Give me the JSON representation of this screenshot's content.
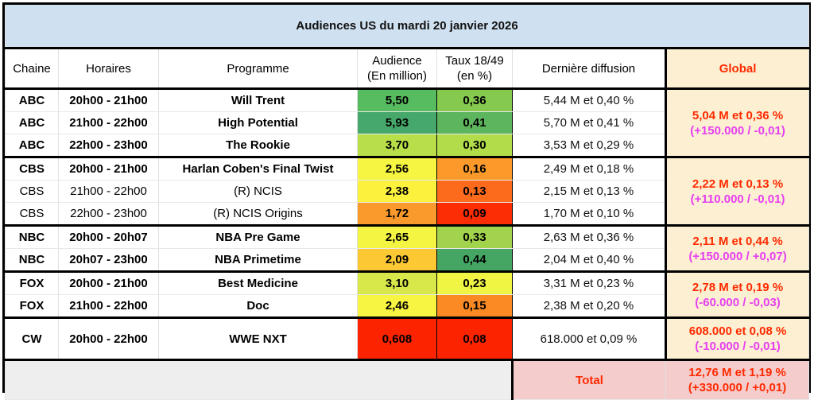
{
  "title": "Audiences US du mardi 20 janvier 2026",
  "headers": {
    "chaine": "Chaine",
    "horaires": "Horaires",
    "programme": "Programme",
    "audience_l1": "Audience",
    "audience_l2": "(En million)",
    "taux_l1": "Taux 18/49",
    "taux_l2": "(en %)",
    "derniere": "Dernière diffusion",
    "global": "Global"
  },
  "rows": [
    {
      "chaine": "ABC",
      "horaires": "20h00 - 21h00",
      "programme": "Will Trent",
      "audience": "5,50",
      "taux": "0,36",
      "derniere": "5,44 M et 0,40 %",
      "bold": true,
      "audience_color": "#57bb5f",
      "taux_color": "#85c94f"
    },
    {
      "chaine": "ABC",
      "horaires": "21h00 - 22h00",
      "programme": "High Potential",
      "audience": "5,93",
      "taux": "0,41",
      "derniere": "5,70 M et 0,41 %",
      "bold": true,
      "audience_color": "#46a86a",
      "taux_color": "#5db55d"
    },
    {
      "chaine": "ABC",
      "horaires": "22h00 - 23h00",
      "programme": "The Rookie",
      "audience": "3,70",
      "taux": "0,30",
      "derniere": "3,53 M et 0,29 %",
      "bold": true,
      "audience_color": "#b8df49",
      "taux_color": "#b2dc4a"
    },
    {
      "chaine": "CBS",
      "horaires": "20h00 - 21h00",
      "programme": "Harlan Coben's Final Twist",
      "audience": "2,56",
      "taux": "0,16",
      "derniere": "2,49 M et 0,18 %",
      "bold": true,
      "audience_color": "#f5f542",
      "taux_color": "#fb9a2a"
    },
    {
      "chaine": "CBS",
      "horaires": "21h00 - 22h00",
      "programme": "(R) NCIS",
      "audience": "2,38",
      "taux": "0,13",
      "derniere": "2,15 M et 0,13 %",
      "bold": false,
      "audience_color": "#fcf23e",
      "taux_color": "#fc6a1c"
    },
    {
      "chaine": "CBS",
      "horaires": "22h00 - 23h00",
      "programme": "(R) NCIS Origins",
      "audience": "1,72",
      "taux": "0,09",
      "derniere": "1,70 M et 0,10 %",
      "bold": false,
      "audience_color": "#fb9a2c",
      "taux_color": "#fc2c04"
    },
    {
      "chaine": "NBC",
      "horaires": "20h00 - 20h07",
      "programme": "NBA Pre Game",
      "audience": "2,65",
      "taux": "0,33",
      "derniere": "2,63 M et 0,36 %",
      "bold": true,
      "audience_color": "#f3f542",
      "taux_color": "#a2d34c"
    },
    {
      "chaine": "NBC",
      "horaires": "20h07 - 23h00",
      "programme": "NBA Primetime",
      "audience": "2,09",
      "taux": "0,44",
      "derniere": "2,04 M et 0,40 %",
      "bold": true,
      "audience_color": "#fcc934",
      "taux_color": "#45a664"
    },
    {
      "chaine": "FOX",
      "horaires": "20h00 - 21h00",
      "programme": "Best Medicine",
      "audience": "3,10",
      "taux": "0,23",
      "derniere": "3,31 M et 0,23 %",
      "bold": true,
      "audience_color": "#d8e84a",
      "taux_color": "#f0f544"
    },
    {
      "chaine": "FOX",
      "horaires": "21h00 - 22h00",
      "programme": "Doc",
      "audience": "2,46",
      "taux": "0,15",
      "derniere": "2,38 M et 0,20 %",
      "bold": true,
      "audience_color": "#f7f542",
      "taux_color": "#fc8a24"
    },
    {
      "chaine": "CW",
      "horaires": "20h00 - 22h00",
      "programme": "WWE NXT",
      "audience": "0,608",
      "taux": "0,08",
      "derniere": "618.000 et 0,09 %",
      "bold": true,
      "audience_color": "#fc2400",
      "taux_color": "#fc2400"
    }
  ],
  "globals": [
    {
      "main": "5,04 M et 0,36 %",
      "diff": "(+150.000 / -0,01)"
    },
    {
      "main": "2,22 M et 0,13 %",
      "diff": "(+110.000 / -0,01)"
    },
    {
      "main": "2,11 M et 0,44 %",
      "diff": "(+150.000 / +0,07)"
    },
    {
      "main": "2,78 M et 0,19 %",
      "diff": "(-60.000 / -0,03)"
    },
    {
      "main": "608.000 et 0,08 %",
      "diff": "(-10.000 / -0,01)"
    }
  ],
  "total": {
    "label": "Total",
    "main": "12,76 M et 1,19 %",
    "diff": "(+330.000 / +0,01)"
  }
}
